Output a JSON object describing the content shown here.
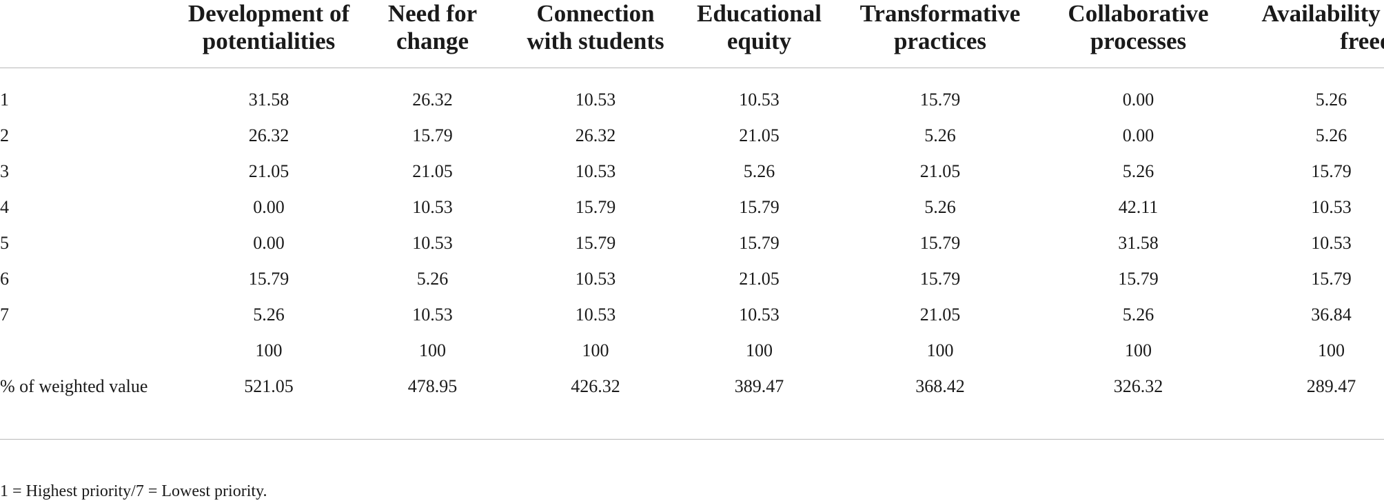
{
  "table": {
    "headers": [
      "",
      "Development of potentialities",
      "Need for change",
      "Connection with students",
      "Educational equity",
      "Transformative practices",
      "Collaborative processes",
      "Availability and freedom"
    ],
    "rows": [
      {
        "label": "1",
        "values": [
          "31.58",
          "26.32",
          "10.53",
          "10.53",
          "15.79",
          "0.00",
          "5.26"
        ]
      },
      {
        "label": "2",
        "values": [
          "26.32",
          "15.79",
          "26.32",
          "21.05",
          "5.26",
          "0.00",
          "5.26"
        ]
      },
      {
        "label": "3",
        "values": [
          "21.05",
          "21.05",
          "10.53",
          "5.26",
          "21.05",
          "5.26",
          "15.79"
        ]
      },
      {
        "label": "4",
        "values": [
          "0.00",
          "10.53",
          "15.79",
          "15.79",
          "5.26",
          "42.11",
          "10.53"
        ]
      },
      {
        "label": "5",
        "values": [
          "0.00",
          "10.53",
          "15.79",
          "15.79",
          "15.79",
          "31.58",
          "10.53"
        ]
      },
      {
        "label": "6",
        "values": [
          "15.79",
          "5.26",
          "10.53",
          "21.05",
          "15.79",
          "15.79",
          "15.79"
        ]
      },
      {
        "label": "7",
        "values": [
          "5.26",
          "10.53",
          "10.53",
          "10.53",
          "21.05",
          "5.26",
          "36.84"
        ]
      },
      {
        "label": "",
        "values": [
          "100",
          "100",
          "100",
          "100",
          "100",
          "100",
          "100"
        ]
      },
      {
        "label": "% of weighted value",
        "values": [
          "521.05",
          "478.95",
          "426.32",
          "389.47",
          "368.42",
          "326.32",
          "289.47"
        ]
      }
    ],
    "footnote": "1 = Highest priority/7 = Lowest priority."
  }
}
